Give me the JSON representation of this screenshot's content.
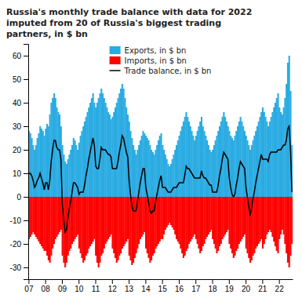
{
  "chart_data": {
    "type": "bar",
    "title": "Russia's monthly trade balance with data for 2022\nimputed from 20 of Russia's biggest trading\npartners, in $ bn",
    "categories": [
      "07",
      null,
      null,
      null,
      null,
      null,
      null,
      null,
      null,
      null,
      null,
      null,
      "08",
      null,
      null,
      null,
      null,
      null,
      null,
      null,
      null,
      null,
      null,
      null,
      "09",
      null,
      null,
      null,
      null,
      null,
      null,
      null,
      null,
      null,
      null,
      null,
      "10",
      null,
      null,
      null,
      null,
      null,
      null,
      null,
      null,
      null,
      null,
      null,
      "11",
      null,
      null,
      null,
      null,
      null,
      null,
      null,
      null,
      null,
      null,
      null,
      "12",
      null,
      null,
      null,
      null,
      null,
      null,
      null,
      null,
      null,
      null,
      null,
      "13",
      null,
      null,
      null,
      null,
      null,
      null,
      null,
      null,
      null,
      null,
      null,
      "14",
      null,
      null,
      null,
      null,
      null,
      null,
      null,
      null,
      null,
      null,
      null,
      "15",
      null,
      null,
      null,
      null,
      null,
      null,
      null,
      null,
      null,
      null,
      null,
      "16",
      null,
      null,
      null,
      null,
      null,
      null,
      null,
      null,
      null,
      null,
      null,
      "17",
      null,
      null,
      null,
      null,
      null,
      null,
      null,
      null,
      null,
      null,
      null,
      "18",
      null,
      null,
      null,
      null,
      null,
      null,
      null,
      null,
      null,
      null,
      null,
      "19",
      null,
      null,
      null,
      null,
      null,
      null,
      null,
      null,
      null,
      null,
      null,
      "20",
      null,
      null,
      null,
      null,
      null,
      null,
      null,
      null,
      null,
      null,
      null,
      "21",
      null,
      null,
      null,
      null,
      null,
      null,
      null,
      null,
      null,
      null,
      null,
      "22",
      null,
      null,
      null,
      null,
      null,
      null,
      null,
      null,
      null
    ],
    "series": [
      {
        "name": "Exports, in $ bn",
        "type": "bar",
        "color": "#29ABE2",
        "values": [
          28,
          27,
          25,
          22,
          20,
          22,
          25,
          27,
          30,
          29,
          28,
          26,
          29,
          31,
          30,
          35,
          40,
          42,
          44,
          42,
          38,
          36,
          35,
          30,
          22,
          18,
          15,
          14,
          16,
          18,
          20,
          22,
          25,
          24,
          22,
          20,
          23,
          26,
          28,
          30,
          32,
          34,
          36,
          38,
          40,
          42,
          44,
          40,
          38,
          40,
          42,
          44,
          46,
          44,
          42,
          40,
          38,
          36,
          35,
          33,
          34,
          36,
          38,
          40,
          42,
          44,
          46,
          48,
          46,
          42,
          38,
          35,
          32,
          28,
          25,
          22,
          20,
          18,
          20,
          22,
          24,
          26,
          28,
          27,
          26,
          25,
          24,
          22,
          20,
          19,
          18,
          20,
          22,
          24,
          26,
          27,
          22,
          20,
          18,
          16,
          14,
          13,
          14,
          16,
          18,
          20,
          22,
          24,
          26,
          28,
          30,
          32,
          34,
          36,
          34,
          32,
          30,
          28,
          26,
          24,
          26,
          28,
          30,
          32,
          34,
          30,
          28,
          26,
          24,
          22,
          20,
          19,
          20,
          22,
          24,
          26,
          28,
          30,
          32,
          34,
          36,
          34,
          32,
          30,
          28,
          26,
          25,
          24,
          26,
          28,
          30,
          32,
          34,
          32,
          30,
          28,
          26,
          24,
          22,
          20,
          22,
          24,
          26,
          28,
          30,
          32,
          34,
          36,
          38,
          36,
          34,
          32,
          30,
          32,
          34,
          36,
          38,
          40,
          42,
          44,
          38,
          36,
          35,
          38,
          42,
          48,
          57,
          60,
          45,
          22
        ]
      },
      {
        "name": "Imports, in $ bn",
        "type": "bar",
        "color": "#FF0000",
        "values": [
          -18,
          -17,
          -16,
          -15,
          -16,
          -17,
          -18,
          -19,
          -20,
          -21,
          -22,
          -23,
          -23,
          -25,
          -27,
          -28,
          -25,
          -22,
          -20,
          -18,
          -17,
          -16,
          -15,
          -14,
          -25,
          -28,
          -30,
          -28,
          -25,
          -23,
          -22,
          -20,
          -19,
          -18,
          -17,
          -16,
          -22,
          -24,
          -26,
          -28,
          -27,
          -25,
          -24,
          -22,
          -21,
          -20,
          -19,
          -18,
          -25,
          -28,
          -30,
          -28,
          -25,
          -24,
          -22,
          -20,
          -19,
          -18,
          -17,
          -16,
          -22,
          -24,
          -26,
          -28,
          -27,
          -25,
          -24,
          -22,
          -21,
          -20,
          -19,
          -18,
          -25,
          -27,
          -29,
          -28,
          -26,
          -24,
          -22,
          -20,
          -18,
          -17,
          -16,
          -15,
          -22,
          -24,
          -26,
          -28,
          -27,
          -25,
          -24,
          -22,
          -21,
          -20,
          -19,
          -18,
          -18,
          -16,
          -14,
          -13,
          -12,
          -11,
          -12,
          -13,
          -14,
          -16,
          -18,
          -19,
          -20,
          -22,
          -24,
          -26,
          -25,
          -23,
          -22,
          -20,
          -19,
          -18,
          -17,
          -16,
          -18,
          -20,
          -22,
          -24,
          -23,
          -21,
          -20,
          -18,
          -17,
          -16,
          -15,
          -14,
          -18,
          -20,
          -22,
          -24,
          -23,
          -21,
          -20,
          -18,
          -17,
          -16,
          -15,
          -14,
          -20,
          -22,
          -24,
          -26,
          -25,
          -23,
          -22,
          -20,
          -19,
          -18,
          -17,
          -16,
          -22,
          -24,
          -26,
          -28,
          -27,
          -25,
          -24,
          -22,
          -21,
          -20,
          -19,
          -18,
          -22,
          -20,
          -18,
          -16,
          -15,
          -14,
          -15,
          -17,
          -19,
          -21,
          -23,
          -24,
          -18,
          -16,
          -14,
          -16,
          -20,
          -24,
          -28,
          -30,
          -25,
          -20
        ]
      },
      {
        "name": "Trade balance, in $ bn",
        "type": "line",
        "color": "#000000",
        "values": [
          10,
          10,
          9,
          7,
          4,
          5,
          7,
          8,
          10,
          8,
          6,
          3,
          6,
          6,
          3,
          7,
          15,
          20,
          24,
          24,
          21,
          20,
          20,
          16,
          -3,
          -10,
          -15,
          -14,
          -9,
          -5,
          -2,
          2,
          6,
          6,
          5,
          4,
          1,
          2,
          2,
          2,
          5,
          9,
          12,
          16,
          19,
          22,
          25,
          22,
          13,
          12,
          12,
          16,
          21,
          20,
          20,
          20,
          19,
          18,
          18,
          17,
          12,
          12,
          12,
          12,
          15,
          19,
          22,
          26,
          25,
          22,
          19,
          17,
          7,
          1,
          -4,
          -6,
          -6,
          -6,
          -2,
          2,
          6,
          9,
          12,
          12,
          4,
          1,
          -2,
          -6,
          -7,
          -6,
          -6,
          -2,
          1,
          4,
          7,
          9,
          4,
          4,
          4,
          3,
          2,
          2,
          2,
          3,
          4,
          4,
          4,
          5,
          6,
          6,
          6,
          6,
          9,
          13,
          12,
          12,
          11,
          10,
          9,
          8,
          8,
          8,
          8,
          8,
          11,
          9,
          8,
          8,
          7,
          6,
          5,
          5,
          2,
          2,
          2,
          2,
          5,
          9,
          12,
          16,
          19,
          18,
          17,
          16,
          8,
          4,
          1,
          0,
          1,
          5,
          8,
          12,
          15,
          14,
          13,
          12,
          4,
          0,
          -4,
          -8,
          -5,
          -1,
          2,
          6,
          9,
          12,
          15,
          18,
          16,
          16,
          16,
          16,
          15,
          18,
          19,
          19,
          19,
          19,
          19,
          20,
          20,
          20,
          21,
          22,
          22,
          24,
          29,
          30,
          20,
          2
        ]
      }
    ],
    "ylim": [
      -35,
      65
    ],
    "yticks": [
      -30,
      -20,
      -10,
      0,
      10,
      20,
      30,
      40,
      50,
      60
    ],
    "grid": false,
    "legend": "upper center"
  }
}
